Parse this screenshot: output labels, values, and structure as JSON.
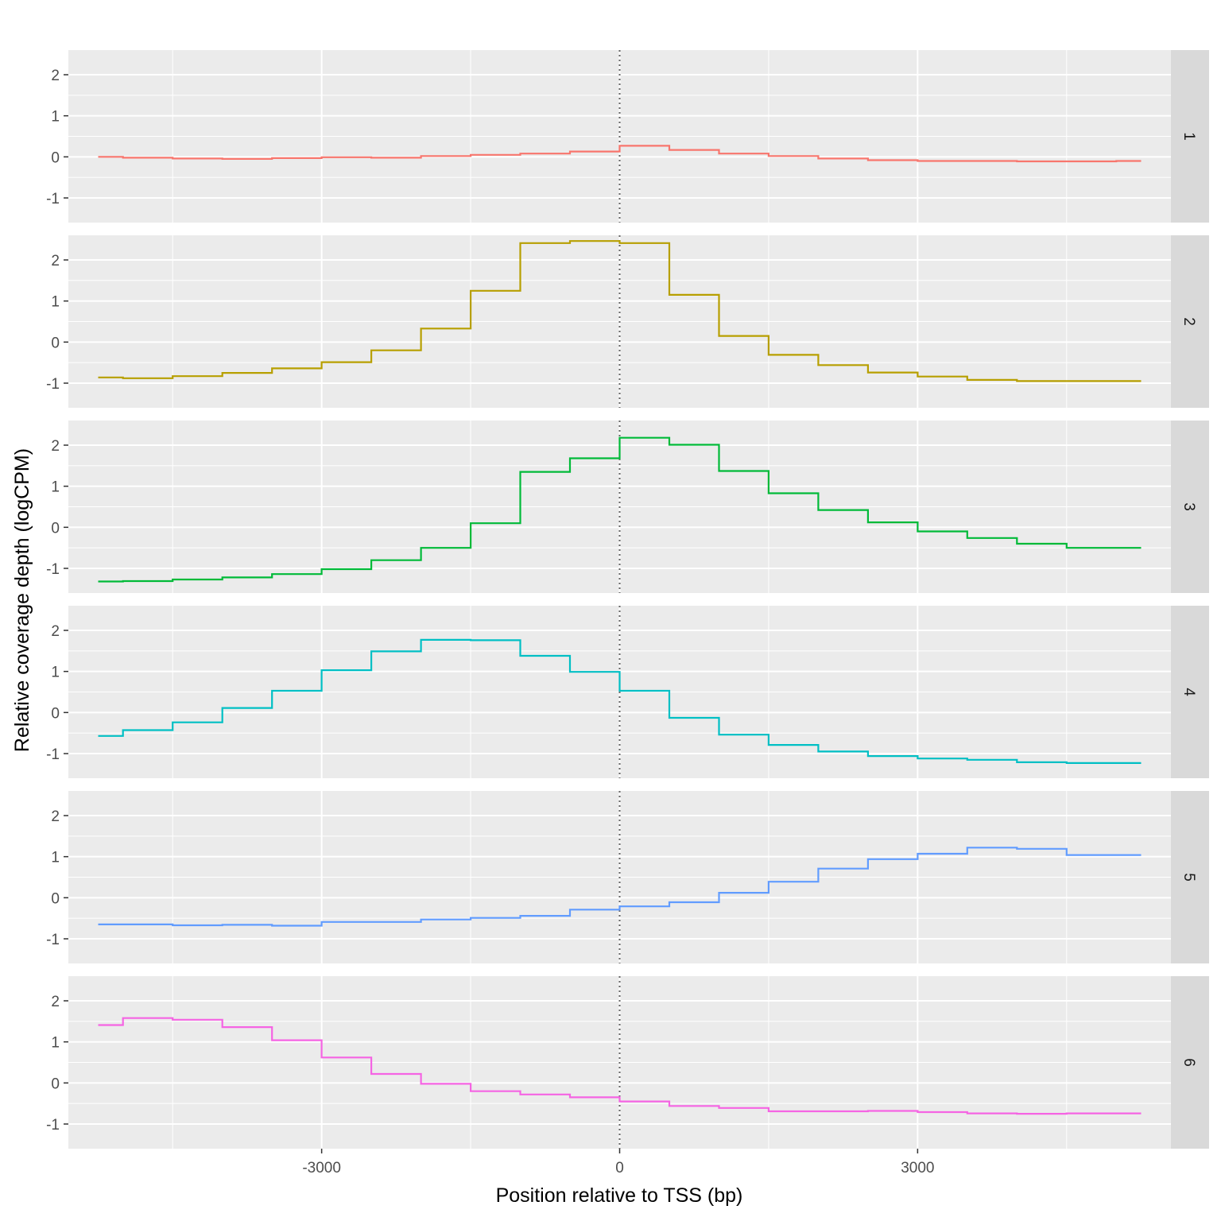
{
  "chart_data": {
    "type": "line",
    "xlabel": "Position relative to TSS (bp)",
    "ylabel": "Relative coverage depth (logCPM)",
    "xlim": [
      -5550,
      5550
    ],
    "ylim": [
      -1.6,
      2.6
    ],
    "x_ticks": [
      -3000,
      0,
      3000
    ],
    "x_tick_labels": [
      "-3000",
      "0",
      "3000"
    ],
    "y_ticks": [
      2,
      1,
      0,
      -1
    ],
    "y_tick_labels": [
      "2",
      "1",
      "0",
      "-1"
    ],
    "reference_line_x": 0,
    "grid": true,
    "x": [
      -5250,
      -4750,
      -4250,
      -3750,
      -3250,
      -2750,
      -2250,
      -1750,
      -1250,
      -750,
      -250,
      250,
      750,
      1250,
      1750,
      2250,
      2750,
      3250,
      3750,
      4250,
      4750,
      5250
    ],
    "series": [
      {
        "name": "1",
        "color": "#F8766D",
        "values": [
          0.0,
          -0.02,
          -0.04,
          -0.05,
          -0.03,
          -0.01,
          -0.02,
          0.02,
          0.05,
          0.08,
          0.13,
          0.27,
          0.17,
          0.08,
          0.02,
          -0.04,
          -0.08,
          -0.1,
          -0.1,
          -0.11,
          -0.11,
          -0.1
        ]
      },
      {
        "name": "2",
        "color": "#B79F00",
        "values": [
          -0.86,
          -0.88,
          -0.83,
          -0.75,
          -0.64,
          -0.49,
          -0.2,
          0.33,
          1.25,
          2.41,
          2.46,
          2.41,
          1.15,
          0.15,
          -0.31,
          -0.56,
          -0.74,
          -0.84,
          -0.92,
          -0.95,
          -0.95,
          -0.95
        ]
      },
      {
        "name": "3",
        "color": "#00BA38",
        "values": [
          -1.32,
          -1.31,
          -1.27,
          -1.22,
          -1.14,
          -1.02,
          -0.8,
          -0.5,
          0.1,
          1.35,
          1.68,
          2.18,
          2.01,
          1.37,
          0.83,
          0.42,
          0.12,
          -0.1,
          -0.26,
          -0.4,
          -0.5,
          -0.5
        ]
      },
      {
        "name": "4",
        "color": "#00BFC4",
        "values": [
          -0.57,
          -0.43,
          -0.24,
          0.11,
          0.53,
          1.03,
          1.49,
          1.77,
          1.76,
          1.38,
          0.99,
          0.53,
          -0.13,
          -0.54,
          -0.79,
          -0.95,
          -1.06,
          -1.12,
          -1.15,
          -1.21,
          -1.23,
          -1.23
        ]
      },
      {
        "name": "5",
        "color": "#619CFF",
        "values": [
          -0.65,
          -0.65,
          -0.67,
          -0.66,
          -0.68,
          -0.59,
          -0.59,
          -0.53,
          -0.49,
          -0.44,
          -0.29,
          -0.21,
          -0.11,
          0.12,
          0.39,
          0.71,
          0.94,
          1.07,
          1.22,
          1.19,
          1.04,
          1.04
        ]
      },
      {
        "name": "6",
        "color": "#F564E3",
        "values": [
          1.41,
          1.58,
          1.54,
          1.36,
          1.04,
          0.62,
          0.22,
          -0.02,
          -0.2,
          -0.28,
          -0.35,
          -0.45,
          -0.56,
          -0.61,
          -0.69,
          -0.69,
          -0.68,
          -0.71,
          -0.74,
          -0.75,
          -0.74,
          -0.74
        ]
      }
    ]
  }
}
